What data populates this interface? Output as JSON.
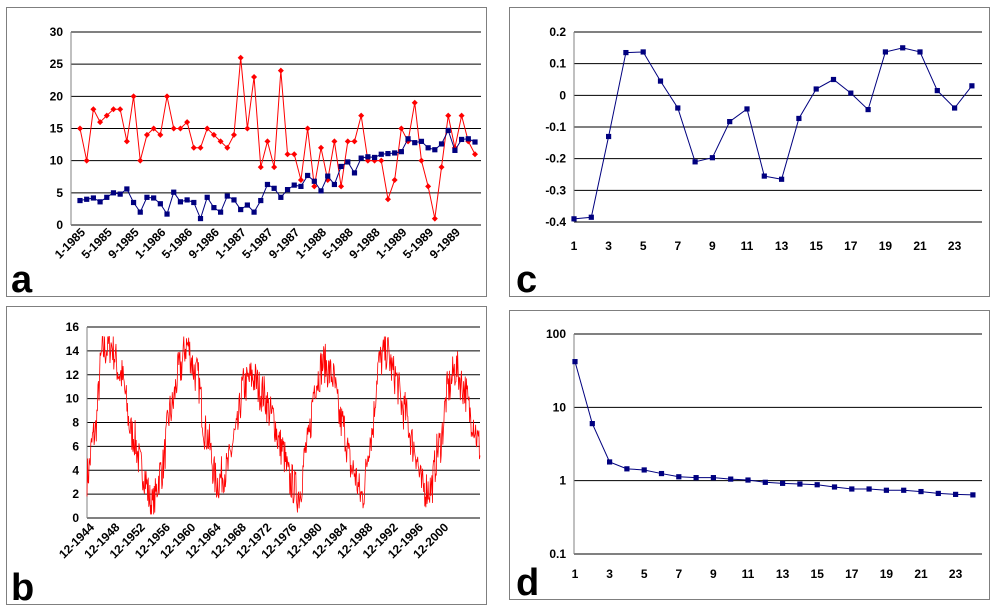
{
  "panels": [
    {
      "id": "a",
      "label": "a",
      "chart_data": {
        "type": "line",
        "ylim": [
          0,
          30
        ],
        "yticks": [
          0,
          5,
          10,
          15,
          20,
          25,
          30
        ],
        "x_tick_labels": [
          "1-1985",
          "5-1985",
          "9-1985",
          "1-1986",
          "5-1986",
          "9-1986",
          "1-1987",
          "5-1987",
          "9-1987",
          "1-1988",
          "5-1988",
          "9-1988",
          "1-1989",
          "5-1989",
          "9-1989"
        ],
        "n_points": 60,
        "grid": true,
        "series": [
          {
            "color": "#ff0000",
            "marker": "diamond",
            "values": [
              15,
              10,
              18,
              16,
              17,
              18,
              18,
              13,
              20,
              10,
              14,
              15,
              14,
              20,
              15,
              15,
              16,
              12,
              12,
              15,
              14,
              13,
              12,
              14,
              26,
              15,
              23,
              9,
              13,
              9,
              24,
              11,
              11,
              7,
              15,
              6,
              12,
              7,
              13,
              6,
              13,
              13,
              17,
              10,
              10,
              10,
              4,
              7,
              15,
              13,
              19,
              10,
              6,
              1,
              9,
              17,
              12,
              17,
              13,
              11
            ]
          },
          {
            "color": "#00007f",
            "marker": "square",
            "values": [
              3.8,
              4,
              4.2,
              3.6,
              4.3,
              5,
              4.8,
              5.6,
              3.5,
              2,
              4.3,
              4.2,
              3.3,
              1.7,
              5.1,
              3.6,
              3.9,
              3.5,
              1,
              4.3,
              2.7,
              2,
              4.5,
              3.9,
              2.4,
              3.1,
              2,
              3.8,
              6.3,
              5.7,
              4.3,
              5.5,
              6.2,
              6,
              7.7,
              6.8,
              5.3,
              7.6,
              6.3,
              9.1,
              9.8,
              8.1,
              10.4,
              10.6,
              10.5,
              11,
              11.1,
              11.2,
              11.4,
              13.4,
              12.8,
              13,
              12,
              11.7,
              12.6,
              14.7,
              11.6,
              13.3,
              13.4,
              12.9
            ]
          }
        ]
      }
    },
    {
      "id": "b",
      "label": "b",
      "chart_data": {
        "type": "line",
        "ylim": [
          0,
          16
        ],
        "yticks": [
          0,
          2,
          4,
          6,
          8,
          10,
          12,
          14,
          16
        ],
        "x_tick_labels": [
          "12-1944",
          "12-1948",
          "12-1952",
          "12-1956",
          "12-1960",
          "12-1964",
          "12-1968",
          "12-1972",
          "12-1976",
          "12-1980",
          "12-1984",
          "12-1988",
          "12-1992",
          "12-1996",
          "12-2000"
        ],
        "x_start_year": 1944.9,
        "x_end_year": 2004.5,
        "grid": true,
        "series": [
          {
            "color": "#ff0000",
            "anchors": [
              [
                1944.9,
                3.5
              ],
              [
                1946.0,
                7
              ],
              [
                1947.3,
                14
              ],
              [
                1948.5,
                14.5
              ],
              [
                1950.0,
                12
              ],
              [
                1951.8,
                7
              ],
              [
                1953.3,
                4
              ],
              [
                1954.8,
                1
              ],
              [
                1956.2,
                4
              ],
              [
                1957.6,
                9
              ],
              [
                1959.0,
                12.5
              ],
              [
                1960.0,
                14.5
              ],
              [
                1961.5,
                12
              ],
              [
                1963.0,
                7
              ],
              [
                1964.6,
                3
              ],
              [
                1966.0,
                4
              ],
              [
                1967.5,
                7
              ],
              [
                1968.6,
                11
              ],
              [
                1970.0,
                11.8
              ],
              [
                1971.5,
                10.5
              ],
              [
                1973.0,
                8.5
              ],
              [
                1974.3,
                6
              ],
              [
                1975.8,
                3
              ],
              [
                1977.0,
                2
              ],
              [
                1978.3,
                6
              ],
              [
                1979.6,
                11.5
              ],
              [
                1980.8,
                13
              ],
              [
                1982.0,
                12
              ],
              [
                1983.5,
                8
              ],
              [
                1985.2,
                4
              ],
              [
                1986.6,
                1.8
              ],
              [
                1988.0,
                7
              ],
              [
                1989.2,
                13
              ],
              [
                1990.3,
                14
              ],
              [
                1991.5,
                12
              ],
              [
                1993.0,
                9
              ],
              [
                1994.5,
                6
              ],
              [
                1995.8,
                2.5
              ],
              [
                1997.0,
                2.5
              ],
              [
                1998.3,
                6
              ],
              [
                1999.8,
                11
              ],
              [
                2000.8,
                12.5
              ],
              [
                2002.0,
                11
              ],
              [
                2003.2,
                8.5
              ],
              [
                2004.5,
                6
              ]
            ]
          }
        ]
      }
    },
    {
      "id": "c",
      "label": "c",
      "chart_data": {
        "type": "line",
        "ylim": [
          -0.4,
          0.2
        ],
        "yticks": [
          -0.4,
          -0.3,
          -0.2,
          -0.1,
          0,
          0.1,
          0.2
        ],
        "ytick_labels": [
          "-0.4",
          "-0.3",
          "-0.2",
          "-0.1",
          "0",
          "0.1",
          "0.2"
        ],
        "x": [
          1,
          2,
          3,
          4,
          5,
          6,
          7,
          8,
          9,
          10,
          11,
          12,
          13,
          14,
          15,
          16,
          17,
          18,
          19,
          20,
          21,
          22,
          23,
          24
        ],
        "x_tick_labels": [
          "1",
          "3",
          "5",
          "7",
          "9",
          "11",
          "13",
          "15",
          "17",
          "19",
          "21",
          "23"
        ],
        "grid": true,
        "series": [
          {
            "color": "#00007f",
            "marker": "square",
            "values": [
              -0.39,
              -0.385,
              -0.13,
              0.135,
              0.137,
              0.045,
              -0.04,
              -0.21,
              -0.197,
              -0.083,
              -0.043,
              -0.255,
              -0.265,
              -0.073,
              0.02,
              0.05,
              0.007,
              -0.045,
              0.137,
              0.15,
              0.137,
              0.015,
              -0.04,
              0.03
            ]
          }
        ]
      }
    },
    {
      "id": "d",
      "label": "d",
      "chart_data": {
        "type": "line",
        "yscale": "log",
        "ylim": [
          0.1,
          100
        ],
        "yticks": [
          0.1,
          1,
          10,
          100
        ],
        "ytick_labels": [
          "0.1",
          "1",
          "10",
          "100"
        ],
        "x": [
          1,
          2,
          3,
          4,
          5,
          6,
          7,
          8,
          9,
          10,
          11,
          12,
          13,
          14,
          15,
          16,
          17,
          18,
          19,
          20,
          21,
          22,
          23,
          24
        ],
        "x_tick_labels": [
          "1",
          "3",
          "5",
          "7",
          "9",
          "11",
          "13",
          "15",
          "17",
          "19",
          "21",
          "23"
        ],
        "grid": true,
        "series": [
          {
            "color": "#00007f",
            "marker": "square",
            "values": [
              42,
              6,
              1.8,
              1.45,
              1.4,
              1.25,
              1.13,
              1.1,
              1.1,
              1.05,
              1.02,
              0.95,
              0.92,
              0.9,
              0.88,
              0.82,
              0.77,
              0.77,
              0.74,
              0.74,
              0.71,
              0.67,
              0.65,
              0.64
            ]
          }
        ]
      }
    }
  ]
}
